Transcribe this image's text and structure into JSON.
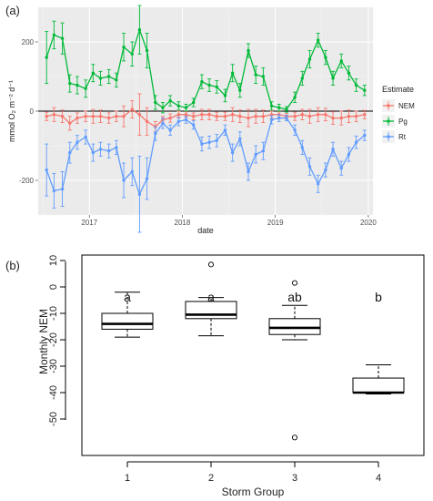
{
  "chart_data": [
    {
      "panel": "(a)",
      "type": "line",
      "xlabel": "date",
      "ylabel": "mmol O₂ m⁻² d⁻¹",
      "x_ticks": [
        "2017",
        "2018",
        "2019",
        "2020"
      ],
      "y_ticks": [
        -200,
        0,
        200
      ],
      "xlim": [
        2016.45,
        2020.05
      ],
      "ylim": [
        -300,
        300
      ],
      "legend": {
        "title": "Estimate",
        "position": "right"
      },
      "grid": true,
      "x": [
        2016.54,
        2016.62,
        2016.71,
        2016.79,
        2016.87,
        2016.96,
        2017.04,
        2017.12,
        2017.21,
        2017.29,
        2017.37,
        2017.46,
        2017.54,
        2017.62,
        2017.71,
        2017.79,
        2017.87,
        2017.96,
        2018.04,
        2018.12,
        2018.21,
        2018.29,
        2018.37,
        2018.46,
        2018.54,
        2018.62,
        2018.71,
        2018.79,
        2018.87,
        2018.96,
        2019.04,
        2019.12,
        2019.21,
        2019.29,
        2019.37,
        2019.46,
        2019.54,
        2019.62,
        2019.71,
        2019.79,
        2019.87,
        2019.96
      ],
      "series": [
        {
          "name": "NEM",
          "color": "#F8766D",
          "values": [
            -15,
            -10,
            -15,
            -35,
            -20,
            -15,
            -15,
            -15,
            -20,
            -15,
            -15,
            5,
            -10,
            -30,
            -45,
            -25,
            -20,
            -10,
            -10,
            -15,
            -10,
            -10,
            -15,
            -15,
            -10,
            -15,
            -20,
            -15,
            -15,
            -10,
            -10,
            -15,
            -15,
            -10,
            -15,
            -10,
            -10,
            -20,
            -20,
            -15,
            -15,
            -10
          ]
        },
        {
          "name": "Pg",
          "color": "#00BA38",
          "values": [
            155,
            220,
            210,
            80,
            75,
            65,
            110,
            95,
            100,
            90,
            185,
            165,
            235,
            175,
            25,
            10,
            30,
            15,
            10,
            25,
            85,
            75,
            70,
            45,
            110,
            60,
            175,
            105,
            100,
            15,
            10,
            5,
            40,
            95,
            150,
            205,
            155,
            95,
            145,
            110,
            75,
            60
          ]
        },
        {
          "name": "Rt",
          "color": "#619CFF",
          "values": [
            -170,
            -230,
            -225,
            -120,
            -90,
            -75,
            -120,
            -110,
            -115,
            -105,
            -200,
            -175,
            -240,
            -195,
            -65,
            -35,
            -55,
            -30,
            -25,
            -40,
            -95,
            -90,
            -85,
            -55,
            -120,
            -80,
            -175,
            -125,
            -115,
            -25,
            -20,
            -20,
            -55,
            -105,
            -160,
            -210,
            -170,
            -110,
            -165,
            -125,
            -90,
            -70
          ]
        }
      ]
    },
    {
      "panel": "(b)",
      "type": "box",
      "xlabel": "Storm Group",
      "ylabel": "Monthly NEM",
      "categories": [
        "1",
        "2",
        "3",
        "4"
      ],
      "y_ticks": [
        10,
        0,
        -10,
        -20,
        -30,
        -40,
        -50
      ],
      "ylim": [
        -60,
        12
      ],
      "boxes": [
        {
          "group": "1",
          "whisker_low": -19,
          "q1": -16,
          "median": -14,
          "q3": -10,
          "whisker_high": -2,
          "outliers": [],
          "letter": "a"
        },
        {
          "group": "2",
          "whisker_low": -18.5,
          "q1": -12,
          "median": -10.5,
          "q3": -5.5,
          "whisker_high": -4,
          "outliers": [
            8.5
          ],
          "letter": "a"
        },
        {
          "group": "3",
          "whisker_low": -20,
          "q1": -18,
          "median": -15.5,
          "q3": -12,
          "whisker_high": -7,
          "outliers": [
            1.5,
            -57
          ],
          "letter": "ab"
        },
        {
          "group": "4",
          "whisker_low": -40.5,
          "q1": -40,
          "median": -40,
          "q3": -34.5,
          "whisker_high": -29.5,
          "outliers": [],
          "letter": "b"
        }
      ]
    }
  ]
}
